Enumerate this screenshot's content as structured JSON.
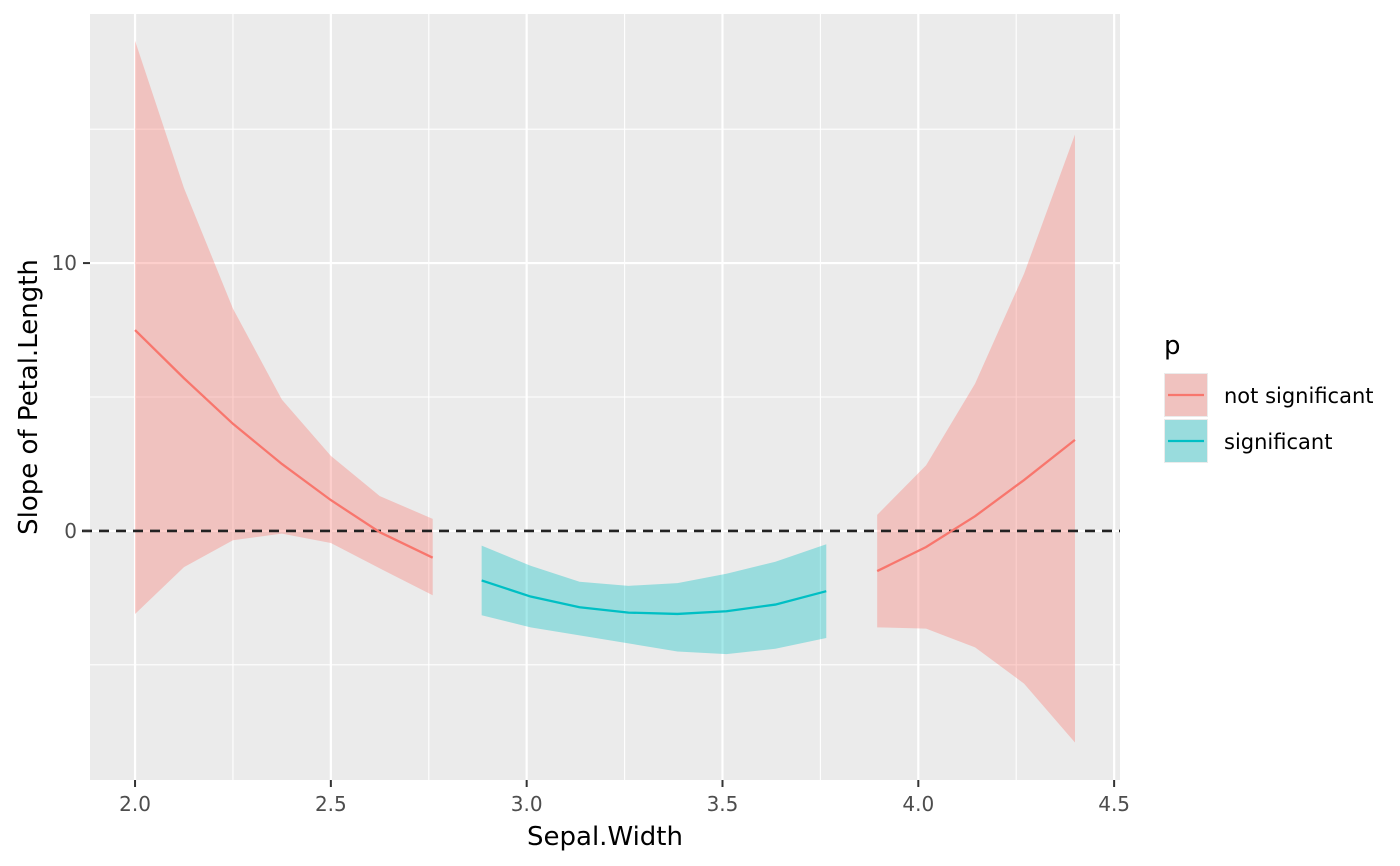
{
  "chart_data": {
    "type": "line",
    "xlabel": "Sepal.Width",
    "ylabel": "Slope of Petal.Length",
    "xlim": [
      1.885,
      4.515
    ],
    "ylim": [
      -9.3,
      19.3
    ],
    "x_ticks": [
      2.0,
      2.5,
      3.0,
      3.5,
      4.0,
      4.5
    ],
    "x_tick_labels": [
      "2.0",
      "2.5",
      "3.0",
      "3.5",
      "4.0",
      "4.5"
    ],
    "y_ticks": [
      0,
      10
    ],
    "y_tick_labels": [
      "0",
      "10"
    ],
    "y_minor_grid": [
      -5,
      5,
      15
    ],
    "grid": true,
    "reference_line": {
      "y": 0,
      "style": "dashed",
      "color": "#222222"
    },
    "legend": {
      "title": "p",
      "position": "right",
      "entries": [
        "not significant",
        "significant"
      ]
    },
    "colors": {
      "not significant": "#F8766D",
      "significant": "#00BFC4",
      "panel_background": "#EBEBEB",
      "grid": "#FFFFFF"
    },
    "series": [
      {
        "name": "not significant",
        "x": [
          2.0,
          2.125,
          2.25,
          2.375,
          2.5,
          2.625,
          2.76
        ],
        "y": [
          7.5,
          5.7,
          4.0,
          2.5,
          1.15,
          -0.05,
          -1.0
        ],
        "lower": [
          -3.1,
          -1.35,
          -0.35,
          -0.1,
          -0.45,
          -1.4,
          -2.4
        ],
        "upper": [
          18.3,
          12.8,
          8.3,
          4.9,
          2.8,
          1.3,
          0.45
        ]
      },
      {
        "name": "significant",
        "x": [
          2.885,
          3.01,
          3.135,
          3.26,
          3.385,
          3.51,
          3.635,
          3.765
        ],
        "y": [
          -1.85,
          -2.45,
          -2.85,
          -3.05,
          -3.1,
          -3.0,
          -2.75,
          -2.25
        ],
        "lower": [
          -3.15,
          -3.6,
          -3.9,
          -4.2,
          -4.5,
          -4.6,
          -4.4,
          -4.0
        ],
        "upper": [
          -0.55,
          -1.3,
          -1.9,
          -2.05,
          -1.95,
          -1.6,
          -1.15,
          -0.5
        ]
      },
      {
        "name": "not significant",
        "x": [
          3.895,
          4.02,
          4.145,
          4.27,
          4.4
        ],
        "y": [
          -1.5,
          -0.6,
          0.55,
          1.9,
          3.4
        ],
        "lower": [
          -3.6,
          -3.65,
          -4.35,
          -5.7,
          -7.9
        ],
        "upper": [
          0.6,
          2.45,
          5.5,
          9.6,
          14.8
        ]
      }
    ]
  }
}
